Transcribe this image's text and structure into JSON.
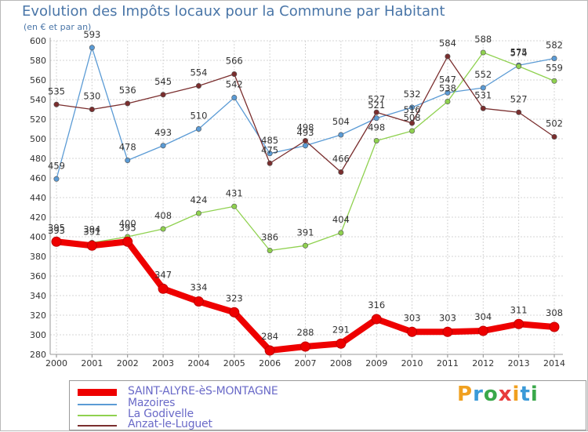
{
  "title": "Evolution des Impôts locaux pour la Commune par Habitant",
  "subtitle": "(en € et par an)",
  "brand": {
    "text": "Proxiti",
    "letters": [
      "P",
      "r",
      "o",
      "x",
      "i",
      "t",
      "i"
    ],
    "colors": [
      "#f0a020",
      "#3a9ad8",
      "#3aa84a",
      "#e83a3a",
      "#f0a020",
      "#3a9ad8",
      "#3aa84a"
    ]
  },
  "chart_data": {
    "type": "line",
    "title": "Evolution des Impôts locaux pour la Commune par Habitant",
    "subtitle": "(en € et par an)",
    "x": [
      "2000",
      "2001",
      "2002",
      "2003",
      "2004",
      "2005",
      "2006",
      "2007",
      "2008",
      "2009",
      "2010",
      "2011",
      "2012",
      "2013",
      "2014"
    ],
    "ylim": [
      280,
      600
    ],
    "yticks": [
      "280",
      "300",
      "320",
      "340",
      "360",
      "380",
      "400",
      "420",
      "440",
      "460",
      "480",
      "500",
      "520",
      "540",
      "560",
      "580",
      "600"
    ],
    "grid": true,
    "legend_position": "bottom",
    "series": [
      {
        "name": "SAINT-ALYRE-èS-MONTAGNE",
        "color": "#ee0000",
        "values": [
          395,
          391,
          395,
          347,
          334,
          323,
          284,
          288,
          291,
          316,
          303,
          303,
          304,
          311,
          308
        ],
        "labels": [
          "395",
          "391",
          "395",
          "347",
          "334",
          "323",
          "284",
          "288",
          "291",
          "316",
          "303",
          "303",
          "304",
          "311",
          "308"
        ]
      },
      {
        "name": "Mazoires",
        "color": "#5b9bd5",
        "values": [
          459,
          593,
          478,
          493,
          510,
          542,
          485,
          493,
          504,
          521,
          532,
          547,
          552,
          575,
          582
        ],
        "labels": [
          "459",
          "593",
          "478",
          "493",
          "510",
          "542",
          "485",
          "493",
          "504",
          "521",
          "532",
          "547",
          "552",
          "575",
          "582"
        ]
      },
      {
        "name": "La Godivelle",
        "color": "#8fd14f",
        "values": [
          393,
          394,
          400,
          408,
          424,
          431,
          386,
          391,
          404,
          498,
          508,
          538,
          588,
          574,
          559
        ],
        "labels": [
          "393",
          "394",
          "400",
          "408",
          "424",
          "431",
          "386",
          "391",
          "404",
          "498",
          "508",
          "538",
          "588",
          "574",
          "559"
        ]
      },
      {
        "name": "Anzat-le-Luguet",
        "color": "#7a2e2e",
        "values": [
          535,
          530,
          536,
          545,
          554,
          566,
          475,
          498,
          466,
          527,
          516,
          584,
          531,
          527,
          502
        ],
        "labels": [
          "535",
          "530",
          "536",
          "545",
          "554",
          "566",
          "475",
          "498",
          "466",
          "527",
          "516",
          "584",
          "531",
          "527",
          "502"
        ]
      }
    ]
  }
}
